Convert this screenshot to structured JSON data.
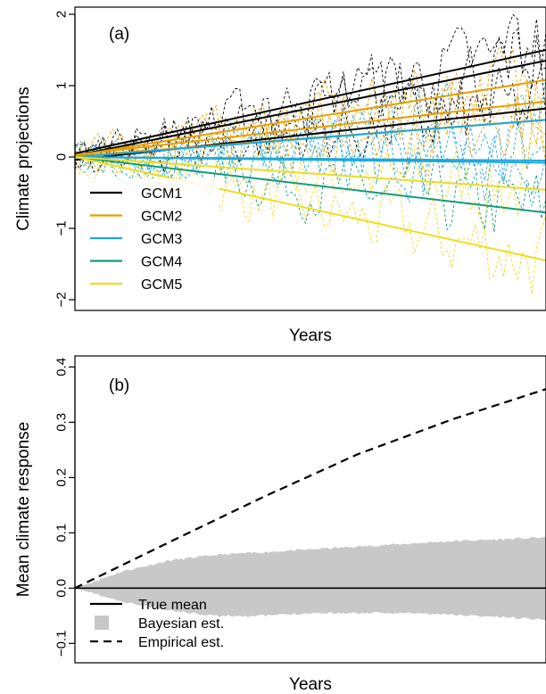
{
  "chart_data": [
    {
      "panel": "(a)",
      "type": "line",
      "xlabel": "Years",
      "ylabel": "Climate projections",
      "ylim": [
        -2.15,
        2.1
      ],
      "yticks": [
        -2,
        -1,
        0,
        1,
        2
      ],
      "x": [
        0,
        100
      ],
      "legend_position": "bottom-left",
      "colors": {
        "GCM1": "#000000",
        "GCM2": "#E69F00",
        "GCM3": "#1AA7E0",
        "GCM4": "#129A7C",
        "GCM5": "#EEDD1E"
      },
      "series": [
        {
          "name": "GCM1",
          "color": "#000000",
          "trend_lines": [
            [
              0.05,
              1.5
            ],
            [
              0.02,
              1.35
            ],
            [
              -0.04,
              0.68
            ]
          ]
        },
        {
          "name": "GCM2",
          "color": "#E69F00",
          "trend_lines": [
            [
              0.02,
              1.08
            ],
            [
              0.03,
              0.78
            ],
            [
              0.01,
              0.52
            ]
          ]
        },
        {
          "name": "GCM3",
          "color": "#1AA7E0",
          "trend_lines": [
            [
              0.0,
              0.52
            ],
            [
              0.0,
              -0.05
            ],
            [
              0.0,
              -0.08
            ]
          ]
        },
        {
          "name": "GCM4",
          "color": "#129A7C",
          "trend_lines": [
            [
              0.0,
              -0.78
            ]
          ]
        },
        {
          "name": "GCM5",
          "color": "#EEDD1E",
          "trend_lines": [
            [
              0.0,
              -0.46
            ],
            [
              0.0,
              -1.45
            ]
          ]
        }
      ],
      "noise_amplitude": 0.55
    },
    {
      "panel": "(b)",
      "type": "area",
      "xlabel": "Years",
      "ylabel": "Mean climate response",
      "ylim": [
        -0.135,
        0.42
      ],
      "yticks": [
        -0.1,
        0.0,
        0.1,
        0.2,
        0.3,
        0.4
      ],
      "x": [
        0,
        100
      ],
      "legend_position": "bottom-left",
      "series": [
        {
          "name": "True mean",
          "style": "solid",
          "values": [
            [
              0,
              0.0
            ],
            [
              100,
              0.0
            ]
          ]
        },
        {
          "name": "Bayesian est.",
          "style": "band",
          "color": "#C8C8C8",
          "upper": [
            [
              0,
              0.0
            ],
            [
              10,
              0.03
            ],
            [
              20,
              0.05
            ],
            [
              30,
              0.06
            ],
            [
              40,
              0.065
            ],
            [
              50,
              0.07
            ],
            [
              60,
              0.075
            ],
            [
              70,
              0.08
            ],
            [
              80,
              0.085
            ],
            [
              90,
              0.088
            ],
            [
              100,
              0.092
            ]
          ],
          "lower": [
            [
              0,
              0.0
            ],
            [
              10,
              -0.025
            ],
            [
              20,
              -0.04
            ],
            [
              30,
              -0.05
            ],
            [
              40,
              -0.05
            ],
            [
              50,
              -0.045
            ],
            [
              60,
              -0.045
            ],
            [
              70,
              -0.045
            ],
            [
              80,
              -0.048
            ],
            [
              90,
              -0.052
            ],
            [
              100,
              -0.057
            ]
          ]
        },
        {
          "name": "Empirical est.",
          "style": "dashed",
          "values": [
            [
              0,
              0.0
            ],
            [
              20,
              0.083
            ],
            [
              40,
              0.165
            ],
            [
              60,
              0.242
            ],
            [
              80,
              0.305
            ],
            [
              100,
              0.36
            ]
          ]
        }
      ]
    }
  ]
}
